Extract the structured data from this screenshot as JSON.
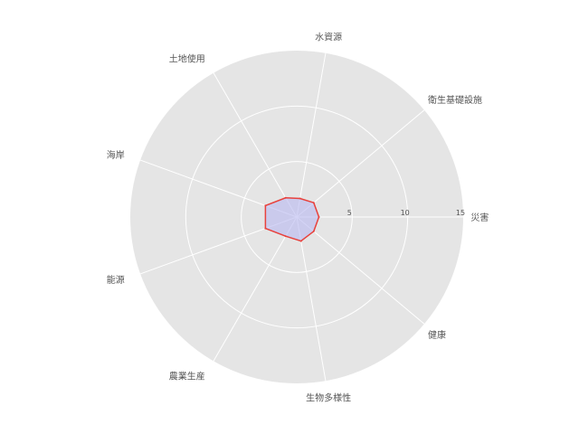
{
  "chart_data": {
    "type": "radar",
    "categories": [
      "災害",
      "衛生基礎設施",
      "水資源",
      "土地使用",
      "海岸",
      "能源",
      "農業生産",
      "生物多様性",
      "健康"
    ],
    "series": [
      {
        "values": [
          2,
          2,
          1.7,
          2,
          3,
          3,
          2,
          2.2,
          2
        ]
      }
    ],
    "rlim": [
      0,
      15
    ],
    "rticks": [
      5,
      10,
      15
    ],
    "rtick_labels": [
      "5",
      "10",
      "15"
    ],
    "grid": true,
    "colors": {
      "background": "#e5e5e5",
      "grid": "#ffffff",
      "line": "#e8413c",
      "fill": "#b8b8f0",
      "text": "#555555"
    }
  }
}
